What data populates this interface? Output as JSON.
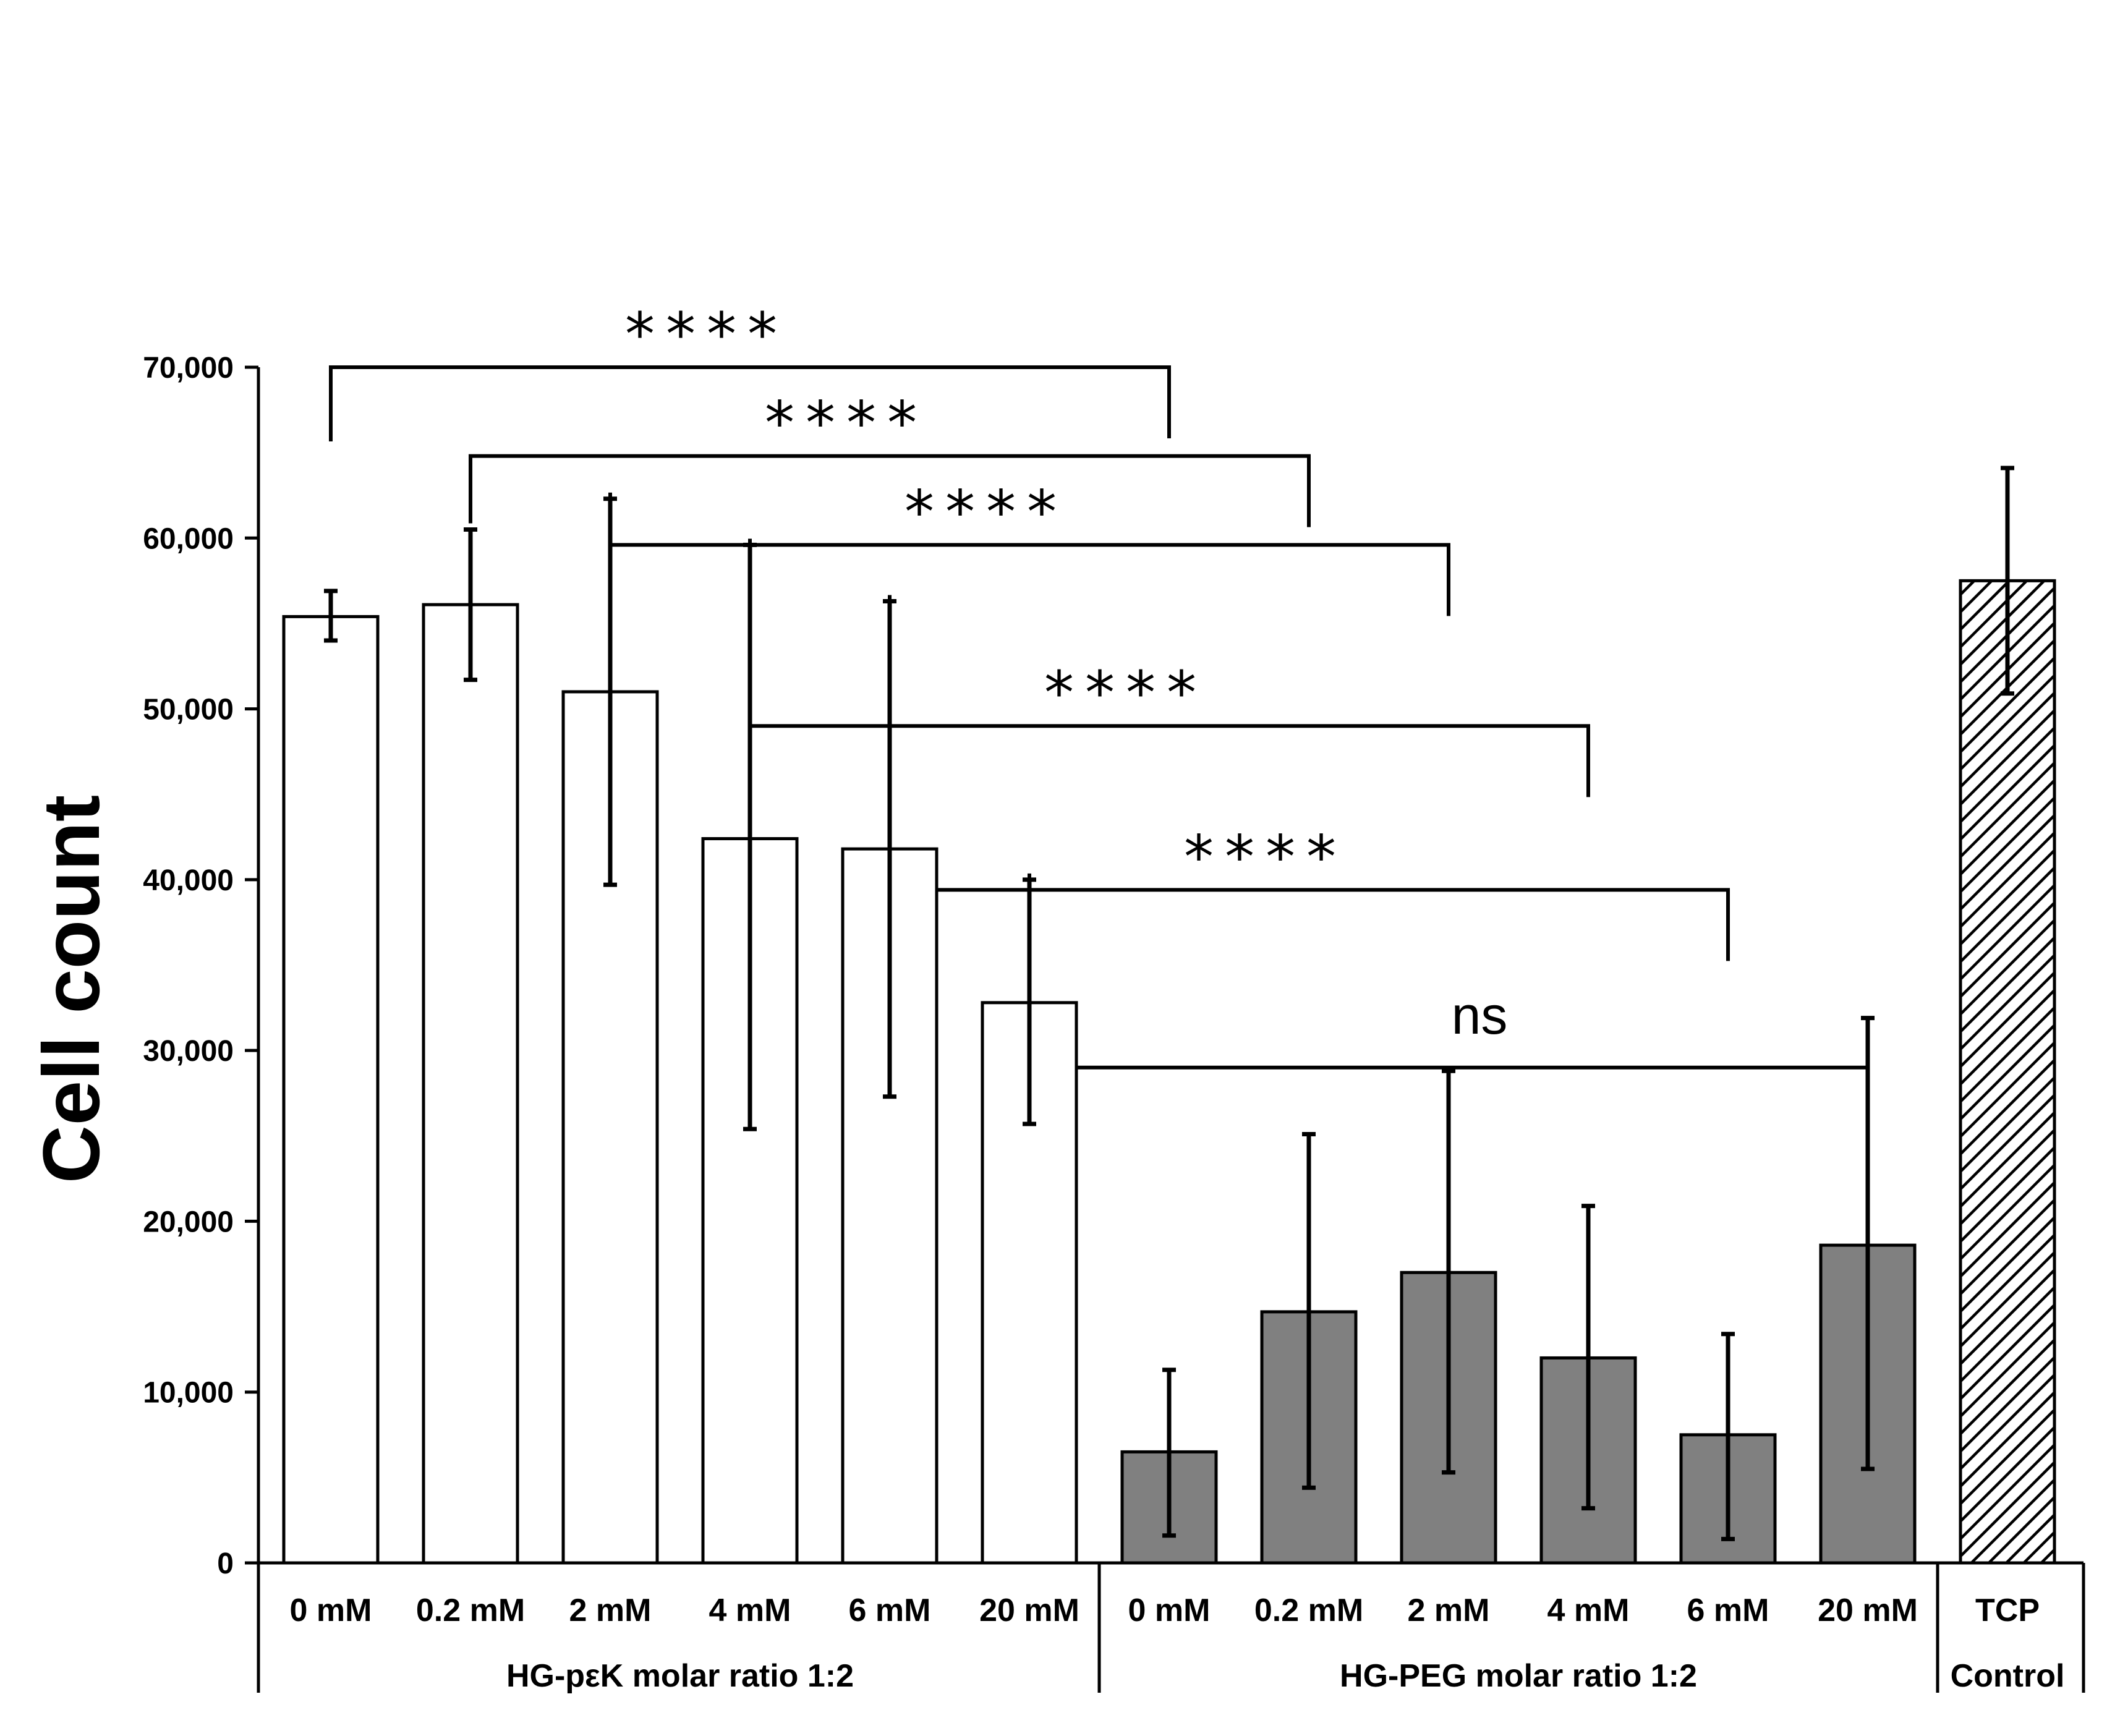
{
  "chart_data": {
    "type": "bar",
    "ylabel": "Cell count",
    "ylim": [
      0,
      70000
    ],
    "yticks": [
      0,
      10000,
      20000,
      30000,
      40000,
      50000,
      60000,
      70000
    ],
    "ytick_labels": [
      "0",
      "10,000",
      "20,000",
      "30,000",
      "40,000",
      "50,000",
      "60,000",
      "70,000"
    ],
    "categories": [
      "0 mM",
      "0.2 mM",
      "2 mM",
      "4 mM",
      "6 mM",
      "20 mM",
      "0 mM",
      "0.2 mM",
      "2 mM",
      "4 mM",
      "6 mM",
      "20 mM",
      "TCP"
    ],
    "groups": [
      {
        "label": "HG-pεK molar ratio 1:2",
        "start": 0,
        "end": 5,
        "fill": "#ffffff"
      },
      {
        "label": "HG-PEG molar ratio 1:2",
        "start": 6,
        "end": 11,
        "fill": "#808080"
      },
      {
        "label": "Control",
        "start": 12,
        "end": 12,
        "fill": "hatch"
      }
    ],
    "values": [
      55400,
      56100,
      51000,
      42400,
      41800,
      32800,
      6500,
      14700,
      17000,
      12000,
      7500,
      18600,
      57500
    ],
    "err_low": [
      54000,
      51700,
      39700,
      25400,
      27300,
      25700,
      1600,
      4400,
      5300,
      3200,
      1400,
      5500,
      50900
    ],
    "err_high": [
      56900,
      60500,
      62300,
      59600,
      56300,
      40000,
      11300,
      25100,
      28800,
      20900,
      13400,
      31900,
      64100
    ],
    "comparisons": [
      {
        "from": 0,
        "to": 6,
        "label": "****",
        "level": 70000
      },
      {
        "from": 1,
        "to": 7,
        "label": "****",
        "level": 64800
      },
      {
        "from": 2,
        "to": 8,
        "label": "****",
        "level": 59600
      },
      {
        "from": 3,
        "to": 9,
        "label": "****",
        "level": 49000
      },
      {
        "from": 4,
        "to": 10,
        "label": "****",
        "level": 39400
      },
      {
        "from": 5,
        "to": 11,
        "label": "ns",
        "level": 29000
      }
    ],
    "colors": {
      "pek": "#ffffff",
      "peg": "#808080",
      "hatch": "#000000"
    }
  }
}
